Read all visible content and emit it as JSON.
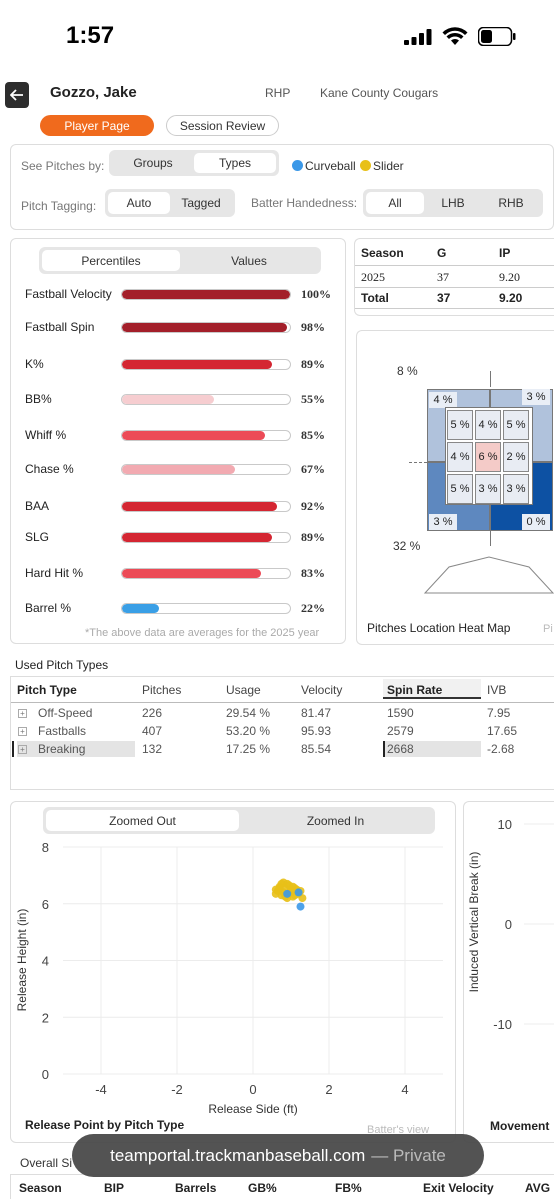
{
  "status": {
    "time": "1:57"
  },
  "header": {
    "name": "Gozzo, Jake",
    "hand": "RHP",
    "team": "Kane County Cougars",
    "tabs": {
      "player": "Player Page",
      "session": "Session Review"
    }
  },
  "filters": {
    "see_pitches_label": "See Pitches by:",
    "see_pitches_options": [
      "Groups",
      "Types"
    ],
    "legend": [
      {
        "label": "Curveball",
        "color": "#3b98e8"
      },
      {
        "label": "Slider",
        "color": "#e8c018"
      }
    ],
    "tagging_label": "Pitch Tagging:",
    "tagging_options": [
      "Auto",
      "Tagged"
    ],
    "batter_label": "Batter Handedness:",
    "batter_options": [
      "All",
      "LHB",
      "RHB"
    ]
  },
  "percentiles": {
    "toggle": [
      "Percentiles",
      "Values"
    ],
    "rows": [
      {
        "label": "Fastball Velocity",
        "value": "100%",
        "pct": 100,
        "color": "#a31f2a"
      },
      {
        "label": "Fastball Spin",
        "value": "98%",
        "pct": 98,
        "color": "#a31f2a"
      },
      {
        "label": "K%",
        "value": "89%",
        "pct": 89,
        "color": "#d42632"
      },
      {
        "label": "BB%",
        "value": "55%",
        "pct": 55,
        "color": "#f6cdd0"
      },
      {
        "label": "Whiff %",
        "value": "85%",
        "pct": 85,
        "color": "#ec4b57"
      },
      {
        "label": "Chase %",
        "value": "67%",
        "pct": 67,
        "color": "#f2aab1"
      },
      {
        "label": "BAA",
        "value": "92%",
        "pct": 92,
        "color": "#d42632"
      },
      {
        "label": "SLG",
        "value": "89%",
        "pct": 89,
        "color": "#d42632"
      },
      {
        "label": "Hard Hit %",
        "value": "83%",
        "pct": 83,
        "color": "#ec4b57"
      },
      {
        "label": "Barrel %",
        "value": "22%",
        "pct": 22,
        "color": "#3a9fe6"
      }
    ],
    "note": "*The above data are averages for the 2025 year"
  },
  "season_table": {
    "headers": [
      "Season",
      "G",
      "IP"
    ],
    "rows": [
      [
        "2025",
        "37",
        "9.20"
      ]
    ],
    "total": [
      "Total",
      "37",
      "9.20"
    ]
  },
  "heatmap": {
    "top_label": "8 %",
    "bottom_label": "32 %",
    "cells": {
      "tl": "4 %",
      "tr": "3 %",
      "bl": "3 %",
      "br": "0 %",
      "r1": [
        "5 %",
        "4 %",
        "5 %"
      ],
      "r2": [
        "4 %",
        "6 %",
        "2 %"
      ],
      "r3": [
        "5 %",
        "3 %",
        "3 %"
      ]
    },
    "title": "Pitches Location Heat Map",
    "cut_text": "Pi"
  },
  "used_pitch_types": {
    "title": "Used Pitch Types",
    "headers": [
      "Pitch Type",
      "Pitches",
      "Usage",
      "Velocity",
      "Spin Rate",
      "IVB"
    ],
    "rows": [
      [
        "Off-Speed",
        "226",
        "29.54 %",
        "81.47",
        "1590",
        "7.95"
      ],
      [
        "Fastballs",
        "407",
        "53.20 %",
        "95.93",
        "2579",
        "17.65"
      ],
      [
        "Breaking",
        "132",
        "17.25 %",
        "85.54",
        "2668",
        "-2.68"
      ]
    ]
  },
  "release": {
    "toggle": [
      "Zoomed Out",
      "Zoomed In"
    ],
    "title": "Release Point by Pitch Type",
    "batter_view": "Batter's view"
  },
  "chart_data": [
    {
      "type": "scatter",
      "title": "Release Point by Pitch Type",
      "xlabel": "Release Side (ft)",
      "ylabel": "Release Height (in)",
      "xlim": [
        -5,
        5
      ],
      "ylim": [
        0,
        8
      ],
      "xticks": [
        "-4",
        "-2",
        "0",
        "2",
        "4"
      ],
      "yticks": [
        "0",
        "2",
        "4",
        "6",
        "8"
      ],
      "grid": true,
      "series": [
        {
          "name": "Slider",
          "color": "#e8c018",
          "points": [
            [
              0.6,
              6.5
            ],
            [
              0.7,
              6.6
            ],
            [
              0.8,
              6.4
            ],
            [
              0.9,
              6.7
            ],
            [
              1.0,
              6.5
            ],
            [
              0.75,
              6.3
            ],
            [
              0.85,
              6.55
            ],
            [
              0.95,
              6.35
            ],
            [
              1.05,
              6.6
            ],
            [
              1.1,
              6.3
            ],
            [
              0.65,
              6.45
            ],
            [
              0.8,
              6.75
            ],
            [
              0.9,
              6.2
            ],
            [
              1.0,
              6.4
            ],
            [
              1.15,
              6.5
            ],
            [
              0.7,
              6.55
            ],
            [
              0.85,
              6.25
            ],
            [
              1.2,
              6.35
            ],
            [
              1.3,
              6.2
            ],
            [
              0.95,
              6.65
            ],
            [
              1.05,
              6.25
            ],
            [
              0.6,
              6.35
            ],
            [
              1.1,
              6.55
            ],
            [
              1.25,
              6.45
            ],
            [
              0.75,
              6.7
            ]
          ]
        },
        {
          "name": "Curveball",
          "color": "#3b98e8",
          "points": [
            [
              1.2,
              6.4
            ],
            [
              1.25,
              5.9
            ],
            [
              0.9,
              6.35
            ]
          ]
        }
      ]
    },
    {
      "type": "scatter",
      "title": "Movement",
      "ylabel": "Induced Vertical Break (in)",
      "ylim": [
        -15,
        15
      ],
      "yticks": [
        "10",
        "0",
        "-10"
      ],
      "series": []
    }
  ],
  "movement_title": "Movement",
  "overall": {
    "label": "Overall Si",
    "headers": [
      "Season",
      "BIP",
      "Barrels",
      "GB%",
      "FB%",
      "Exit Velocity",
      "AVG"
    ]
  },
  "url_bar": {
    "domain": "teamportal.trackmanbaseball.com",
    "suffix": "— Private"
  }
}
